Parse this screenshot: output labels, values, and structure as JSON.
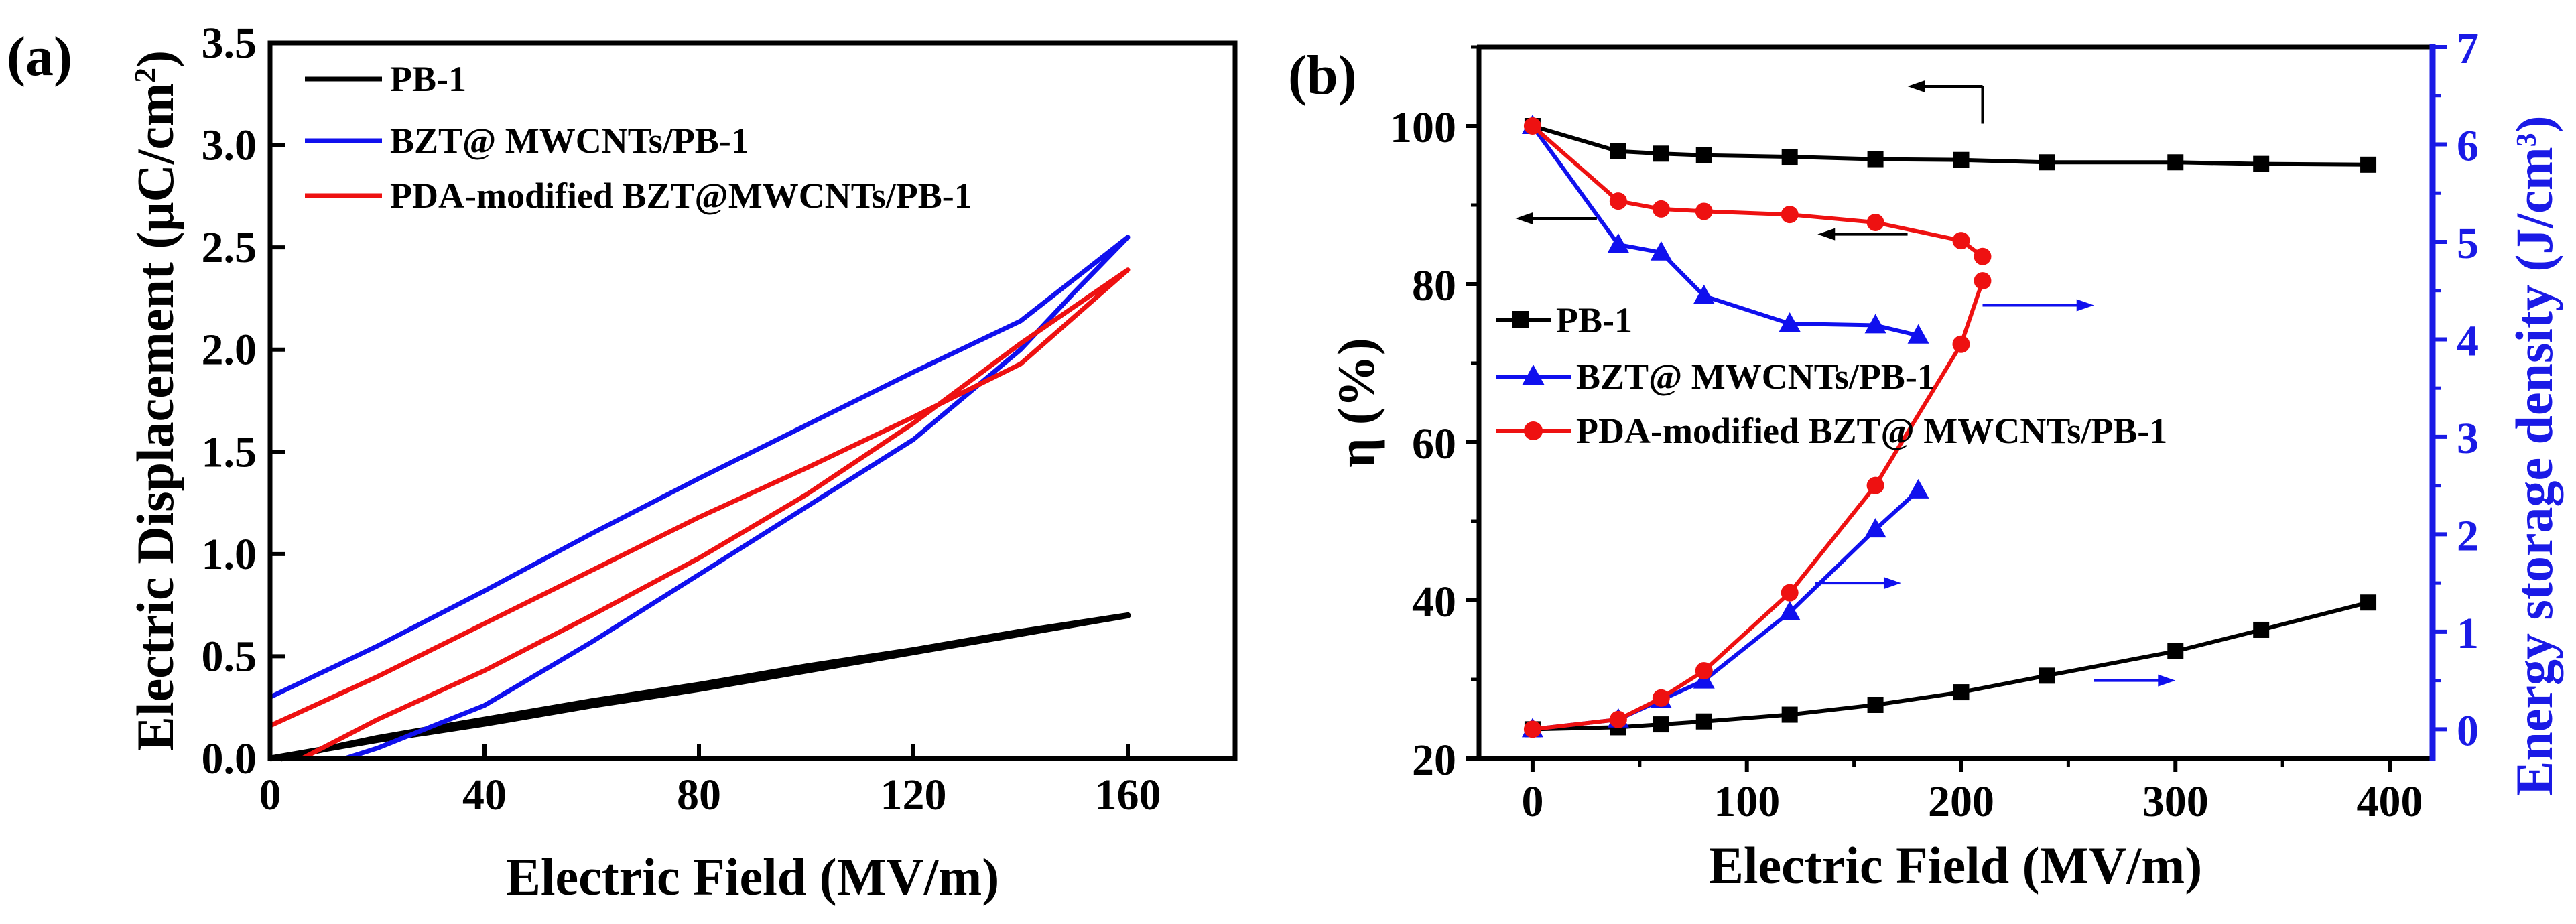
{
  "figure": {
    "colors": {
      "black": "#000000",
      "blue": "#1010ee",
      "red": "#ee1111",
      "axis_blue": "#1a1ae6"
    }
  },
  "chart_data": [
    {
      "type": "line",
      "panel_label": "(a)",
      "title": "",
      "xlabel": "Electric Field (MV/m)",
      "ylabel_main": "Electric Displacement (μC/cm",
      "ylabel_sup": "2",
      "ylabel_close": ")",
      "xlim": [
        0,
        180
      ],
      "ylim": [
        0,
        3.5
      ],
      "xticks": [
        0,
        40,
        80,
        120,
        160
      ],
      "xtick_labels": [
        "0",
        "40",
        "80",
        "120",
        "160"
      ],
      "yticks": [
        0,
        0.5,
        1.0,
        1.5,
        2.0,
        2.5,
        3.0,
        3.5
      ],
      "ytick_labels": [
        "0.0",
        "0.5",
        "1.0",
        "1.5",
        "2.0",
        "2.5",
        "3.0",
        "3.5"
      ],
      "legend_position": "top-left",
      "series": [
        {
          "name": "PB-1",
          "color": "#000000",
          "x": [
            0,
            20,
            40,
            60,
            80,
            100,
            120,
            140,
            160,
            140,
            120,
            100,
            80,
            60,
            40,
            20,
            2
          ],
          "y": [
            0,
            0.09,
            0.17,
            0.26,
            0.34,
            0.43,
            0.52,
            0.61,
            0.7,
            0.62,
            0.53,
            0.45,
            0.36,
            0.28,
            0.19,
            0.1,
            0.0
          ]
        },
        {
          "name": "BZT@ MWCNTs/PB-1",
          "color": "#1010ee",
          "x": [
            0,
            20,
            40,
            60,
            80,
            100,
            120,
            140,
            160,
            150,
            140,
            120,
            100,
            80,
            60,
            40,
            20,
            14
          ],
          "y": [
            0.3,
            0.55,
            0.82,
            1.1,
            1.37,
            1.63,
            1.89,
            2.14,
            2.55,
            2.28,
            2.0,
            1.56,
            1.23,
            0.9,
            0.57,
            0.26,
            0.05,
            0.0
          ]
        },
        {
          "name": "PDA-modified BZT@MWCNTs/PB-1",
          "color": "#ee1111",
          "x": [
            0,
            20,
            40,
            60,
            80,
            100,
            120,
            140,
            160,
            140,
            120,
            100,
            80,
            60,
            40,
            20,
            6
          ],
          "y": [
            0.16,
            0.4,
            0.66,
            0.92,
            1.18,
            1.42,
            1.67,
            1.93,
            2.39,
            2.03,
            1.64,
            1.29,
            0.98,
            0.7,
            0.43,
            0.19,
            0.0
          ]
        }
      ]
    },
    {
      "type": "line",
      "panel_label": "(b)",
      "title": "",
      "xlabel": "Electric Field (MV/m)",
      "ylabel_left": "η (%)",
      "ylabel_right_main": "Energy storage density (J/cm",
      "ylabel_right_sup": "3",
      "ylabel_right_close": ")",
      "xlim": [
        -25,
        420
      ],
      "ylim_left": [
        20,
        110
      ],
      "ylim_right": [
        -0.3,
        7
      ],
      "xticks": [
        0,
        100,
        200,
        300,
        400
      ],
      "xtick_labels": [
        "0",
        "100",
        "200",
        "300",
        "400"
      ],
      "yticks_left": [
        20,
        40,
        60,
        80,
        100
      ],
      "ytick_labels_left": [
        "20",
        "40",
        "60",
        "80",
        "100"
      ],
      "yticks_right": [
        0,
        1,
        2,
        3,
        4,
        5,
        6,
        7
      ],
      "ytick_labels_right": [
        "0",
        "1",
        "2",
        "3",
        "4",
        "5",
        "6",
        "7"
      ],
      "legend_position": "center-left",
      "series": [
        {
          "name": "PB-1",
          "color": "#000000",
          "marker": "square",
          "axis": "left",
          "legend": true,
          "x": [
            0,
            40,
            60,
            80,
            120,
            160,
            200,
            240,
            300,
            340,
            390
          ],
          "y": [
            100,
            96.8,
            96.5,
            96.3,
            96.1,
            95.8,
            95.7,
            95.4,
            95.4,
            95.2,
            95.1
          ]
        },
        {
          "name": "PB-1",
          "color": "#000000",
          "marker": "square",
          "axis": "right",
          "legend": false,
          "x": [
            0,
            40,
            60,
            80,
            120,
            160,
            200,
            240,
            300,
            340,
            390
          ],
          "y": [
            0,
            0.02,
            0.05,
            0.08,
            0.15,
            0.25,
            0.38,
            0.55,
            0.8,
            1.02,
            1.3
          ]
        },
        {
          "name": "BZT@ MWCNTs/PB-1",
          "color": "#1010ee",
          "marker": "triangle",
          "axis": "right",
          "legend": true,
          "x": [
            0,
            40,
            60,
            80,
            120,
            160,
            180
          ],
          "y": [
            0,
            0.1,
            0.3,
            0.5,
            1.2,
            2.05,
            2.45
          ]
        },
        {
          "name": "BZT@ MWCNTs/PB-1",
          "color": "#1010ee",
          "marker": "triangle",
          "axis": "left",
          "legend": false,
          "x": [
            0,
            40,
            60,
            80,
            120,
            160,
            180
          ],
          "y": [
            100,
            85,
            84,
            78.5,
            75,
            74.8,
            73.5
          ]
        },
        {
          "name": "PDA-modified BZT@ MWCNTs/PB-1",
          "color": "#ee1111",
          "marker": "circle",
          "axis": "left",
          "legend": true,
          "x": [
            0,
            40,
            60,
            80,
            120,
            160,
            200,
            210
          ],
          "y": [
            100,
            90.5,
            89.5,
            89.2,
            88.8,
            87.8,
            85.5,
            83.5
          ]
        },
        {
          "name": "PDA-modified BZT@ MWCNTs/PB-1",
          "color": "#ee1111",
          "marker": "circle",
          "axis": "right",
          "legend": false,
          "x": [
            0,
            40,
            60,
            80,
            120,
            160,
            200,
            210
          ],
          "y": [
            0,
            0.1,
            0.32,
            0.6,
            1.4,
            2.5,
            3.95,
            4.6
          ]
        }
      ],
      "arrows": [
        {
          "direction": "left",
          "color": "#000000",
          "x_from": 210,
          "x_to": 175,
          "y": 105,
          "axis": "left"
        },
        {
          "direction": "left",
          "color": "#000000",
          "x_from": 30,
          "x_to": -8,
          "y": 88.3,
          "axis": "left"
        },
        {
          "direction": "left",
          "color": "#000000",
          "x_from": 175,
          "x_to": 133,
          "y": 86.3,
          "axis": "left"
        },
        {
          "direction": "right",
          "color": "#1010ee",
          "x_from": 210,
          "x_to": 262,
          "y": 4.35,
          "axis": "right"
        },
        {
          "direction": "right",
          "color": "#1010ee",
          "x_from": 132,
          "x_to": 172,
          "y": 1.5,
          "axis": "right"
        },
        {
          "direction": "right",
          "color": "#1010ee",
          "x_from": 262,
          "x_to": 300,
          "y": 0.5,
          "axis": "right"
        }
      ]
    }
  ]
}
